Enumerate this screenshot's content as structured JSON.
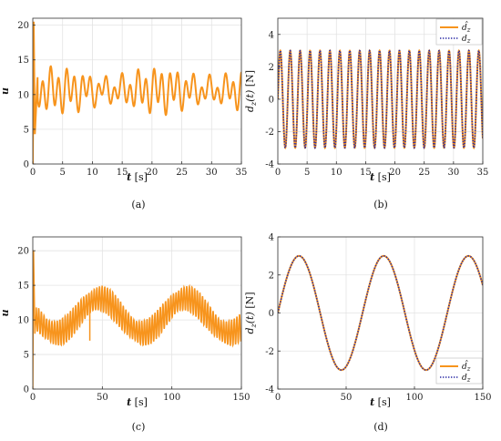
{
  "colors": {
    "u": "#F7941D",
    "est": "#F7941D",
    "true": "#2B2BA6",
    "grid": "#e3e3e3",
    "axis": "#333333"
  },
  "chart_data": [
    {
      "id": "a",
      "type": "line",
      "caption": "(a)",
      "xlabel_var": "t",
      "xlabel_unit": "[s]",
      "ylabel": "u",
      "xlim": [
        0,
        35
      ],
      "ylim": [
        0,
        21
      ],
      "xticks": [
        0,
        5,
        10,
        15,
        20,
        25,
        30,
        35
      ],
      "yticks": [
        0,
        5,
        10,
        15,
        20
      ],
      "grid": true,
      "series": [
        {
          "color_key": "u",
          "style": "solid",
          "model": {
            "kind": "control_fast",
            "base": 10.6,
            "amp1": 2.6,
            "f1": 0.75,
            "amp2": 1.0,
            "f2": 0.34,
            "transient": [
              [
                0,
                0
              ],
              [
                0.15,
                20.5
              ],
              [
                0.35,
                4.3
              ],
              [
                0.8,
                12.5
              ]
            ]
          }
        }
      ]
    },
    {
      "id": "b",
      "type": "line",
      "caption": "(b)",
      "xlabel_var": "t",
      "xlabel_unit": "[s]",
      "ylabel_var": "d_z(t)",
      "ylabel_unit": "[N]",
      "xlim": [
        0,
        35
      ],
      "ylim": [
        -4,
        5
      ],
      "xticks": [
        0,
        5,
        10,
        15,
        20,
        25,
        30,
        35
      ],
      "yticks": [
        -4,
        -2,
        0,
        2,
        4
      ],
      "grid": true,
      "legend_position": "top-right",
      "series": [
        {
          "name": "d̂_z",
          "color_key": "est",
          "style": "solid",
          "model": {
            "kind": "sine",
            "amp": 3,
            "freq": 0.59,
            "phase": 0
          }
        },
        {
          "name": "d_z",
          "color_key": "true",
          "style": "dotted",
          "model": {
            "kind": "sine",
            "amp": 3,
            "freq": 0.59,
            "phase": 0
          }
        }
      ]
    },
    {
      "id": "c",
      "type": "line",
      "caption": "(c)",
      "xlabel_var": "t",
      "xlabel_unit": "[s]",
      "ylabel": "u",
      "xlim": [
        0,
        150
      ],
      "ylim": [
        0,
        22
      ],
      "xticks": [
        0,
        50,
        100,
        150
      ],
      "yticks": [
        0,
        5,
        10,
        15,
        20
      ],
      "grid": true,
      "series": [
        {
          "color_key": "u",
          "style": "solid",
          "model": {
            "kind": "control_slow",
            "base": 10.6,
            "slow_amp": 2.5,
            "slow_period": 62,
            "slow_phase_t": 48,
            "fast_amp": 2.0,
            "fast_period": 1.9,
            "transient": [
              [
                0,
                0
              ],
              [
                0.5,
                20.5
              ],
              [
                1.5,
                8
              ],
              [
                2.5,
                11
              ]
            ],
            "spike": [
              41,
              7
            ]
          }
        }
      ]
    },
    {
      "id": "d",
      "type": "line",
      "caption": "(d)",
      "xlabel_var": "t",
      "xlabel_unit": "[s]",
      "ylabel_var": "d_z(t)",
      "ylabel_unit": "[N]",
      "xlim": [
        0,
        150
      ],
      "ylim": [
        -4,
        4
      ],
      "xticks": [
        0,
        50,
        100,
        150
      ],
      "yticks": [
        -4,
        -2,
        0,
        2,
        4
      ],
      "grid": true,
      "legend_position": "bottom-right",
      "series": [
        {
          "name": "d̂_z",
          "color_key": "est",
          "style": "solid",
          "model": {
            "kind": "sine",
            "amp": 3,
            "period": 62,
            "phase": 0
          }
        },
        {
          "name": "d_z",
          "color_key": "true",
          "style": "dotted",
          "model": {
            "kind": "sine",
            "amp": 3,
            "period": 62,
            "phase": 0
          }
        }
      ]
    }
  ]
}
